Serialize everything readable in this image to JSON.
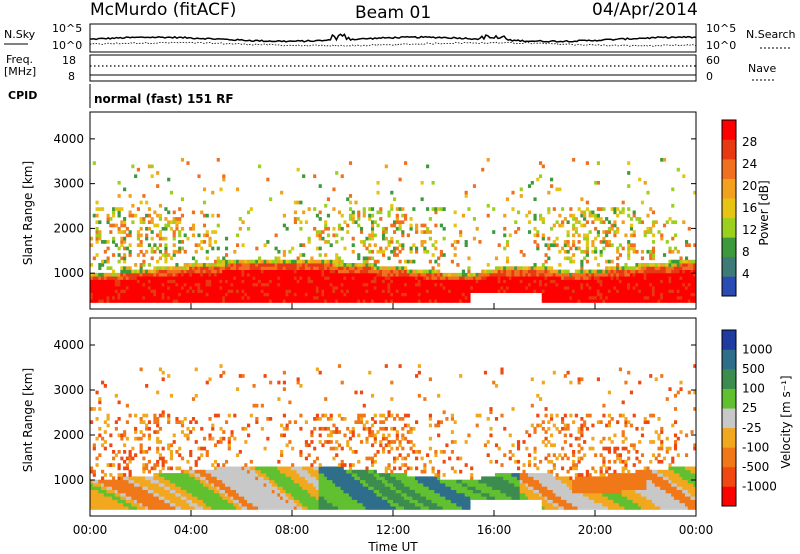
{
  "header": {
    "station": "McMurdo (fitACF)",
    "beam": "Beam 01",
    "date": "04/Apr/2014"
  },
  "status_panels": {
    "nsky_label": "N.Sky",
    "nsearch_label": "N.Search",
    "freq_label_1": "Freq.",
    "freq_label_2": "[MHz]",
    "nave_label": "Nave",
    "cpid_label": "CPID",
    "cpid_text": "normal (fast) 151 RF",
    "noise_ticks": [
      "10^5",
      "10^0"
    ],
    "freq_ticks": [
      "18",
      "8"
    ],
    "nave_ticks": [
      "60",
      "0"
    ]
  },
  "chart_data": [
    {
      "type": "heatmap",
      "quantity": "Power",
      "ylabel": "Slant Range [km]",
      "xlabel": "",
      "ylim": [
        200,
        4600
      ],
      "yticks": [
        1000,
        2000,
        3000,
        4000
      ],
      "xlim_hours": [
        0,
        24
      ],
      "colorbar": {
        "label": "Power [dB]",
        "ticks": [
          4,
          8,
          12,
          16,
          20,
          24,
          28
        ],
        "range": [
          0,
          32
        ]
      },
      "colors": [
        "#0a22e6",
        "#2a4ab4",
        "#3e7a78",
        "#3c9a3c",
        "#9cd01e",
        "#e6c414",
        "#f2a01e",
        "#f07020",
        "#e83a12",
        "#ff0000"
      ]
    },
    {
      "type": "heatmap",
      "quantity": "Velocity",
      "ylabel": "Slant Range [km]",
      "xlabel": "Time UT",
      "ylim": [
        200,
        4600
      ],
      "yticks": [
        1000,
        2000,
        3000,
        4000
      ],
      "xlim_hours": [
        0,
        24
      ],
      "xticks": [
        "00:00",
        "04:00",
        "08:00",
        "12:00",
        "16:00",
        "20:00",
        "00:00"
      ],
      "colorbar": {
        "label": "Velocity [m s⁻¹]",
        "ticks": [
          "1000",
          "500",
          "100",
          "25",
          "-25",
          "-100",
          "-500",
          "-1000"
        ]
      },
      "colors": [
        "#1e3ca0",
        "#2e6e8a",
        "#3c8c50",
        "#60c030",
        "#c8c8c8",
        "#f2a81e",
        "#f07818",
        "#f04810",
        "#ff0000"
      ]
    }
  ]
}
